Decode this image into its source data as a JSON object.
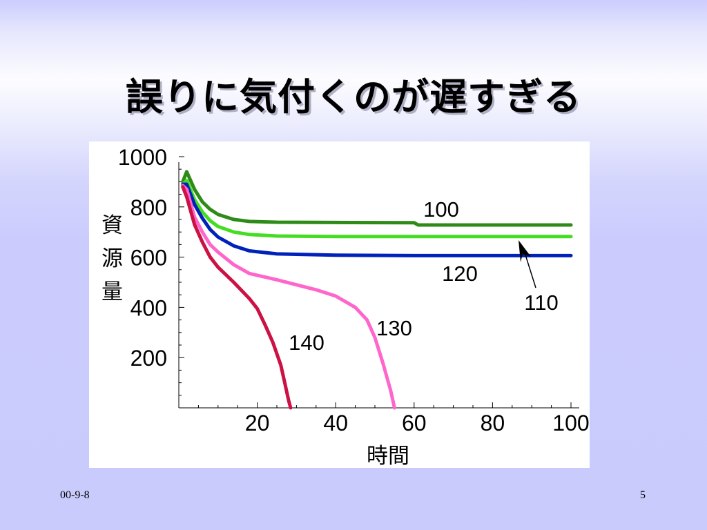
{
  "slide": {
    "title": "誤りに気付くのが遅すぎる",
    "date": "00-9-8",
    "page_number": "5"
  },
  "chart_data": {
    "type": "line",
    "title": "",
    "xlabel": "時間",
    "ylabel": "資源量",
    "xlim": [
      0,
      100
    ],
    "ylim": [
      0,
      1000
    ],
    "xticks": [
      20,
      40,
      60,
      80,
      100
    ],
    "yticks": [
      200,
      400,
      600,
      800,
      1000
    ],
    "grid": false,
    "series": [
      {
        "name": "100",
        "color": "#2e8b17",
        "points": [
          [
            1,
            900
          ],
          [
            2,
            940
          ],
          [
            4,
            870
          ],
          [
            6,
            820
          ],
          [
            8,
            790
          ],
          [
            10,
            770
          ],
          [
            14,
            750
          ],
          [
            18,
            742
          ],
          [
            25,
            739
          ],
          [
            40,
            738
          ],
          [
            60,
            737
          ],
          [
            61,
            728
          ],
          [
            80,
            728
          ],
          [
            100,
            728
          ]
        ]
      },
      {
        "name": "110",
        "color": "#44dd22",
        "points": [
          [
            1,
            890
          ],
          [
            2,
            905
          ],
          [
            4,
            830
          ],
          [
            6,
            780
          ],
          [
            8,
            745
          ],
          [
            10,
            722
          ],
          [
            14,
            700
          ],
          [
            18,
            690
          ],
          [
            25,
            684
          ],
          [
            40,
            682
          ],
          [
            60,
            682
          ],
          [
            80,
            682
          ],
          [
            100,
            682
          ]
        ]
      },
      {
        "name": "120",
        "color": "#0022bb",
        "points": [
          [
            1,
            890
          ],
          [
            2,
            890
          ],
          [
            4,
            810
          ],
          [
            6,
            755
          ],
          [
            8,
            710
          ],
          [
            10,
            680
          ],
          [
            14,
            645
          ],
          [
            18,
            625
          ],
          [
            25,
            613
          ],
          [
            40,
            608
          ],
          [
            60,
            606
          ],
          [
            80,
            606
          ],
          [
            100,
            606
          ]
        ]
      },
      {
        "name": "130",
        "color": "#ff66cc",
        "points": [
          [
            1,
            885
          ],
          [
            2,
            870
          ],
          [
            4,
            760
          ],
          [
            6,
            700
          ],
          [
            8,
            650
          ],
          [
            10,
            620
          ],
          [
            14,
            570
          ],
          [
            18,
            535
          ],
          [
            25,
            510
          ],
          [
            35,
            470
          ],
          [
            40,
            445
          ],
          [
            45,
            400
          ],
          [
            48,
            350
          ],
          [
            50,
            280
          ],
          [
            52,
            180
          ],
          [
            54,
            70
          ],
          [
            55,
            0
          ]
        ]
      },
      {
        "name": "140",
        "color": "#cc1144",
        "points": [
          [
            1,
            880
          ],
          [
            2,
            840
          ],
          [
            4,
            730
          ],
          [
            6,
            660
          ],
          [
            8,
            600
          ],
          [
            10,
            560
          ],
          [
            14,
            500
          ],
          [
            18,
            435
          ],
          [
            20,
            395
          ],
          [
            22,
            330
          ],
          [
            24,
            260
          ],
          [
            26,
            170
          ],
          [
            27,
            100
          ],
          [
            28,
            30
          ],
          [
            28.5,
            0
          ]
        ]
      }
    ],
    "annotations": [
      {
        "text": "100",
        "series": "100"
      },
      {
        "text": "110",
        "series": "110",
        "arrow": true
      },
      {
        "text": "120",
        "series": "120"
      },
      {
        "text": "130",
        "series": "130"
      },
      {
        "text": "140",
        "series": "140"
      }
    ]
  }
}
